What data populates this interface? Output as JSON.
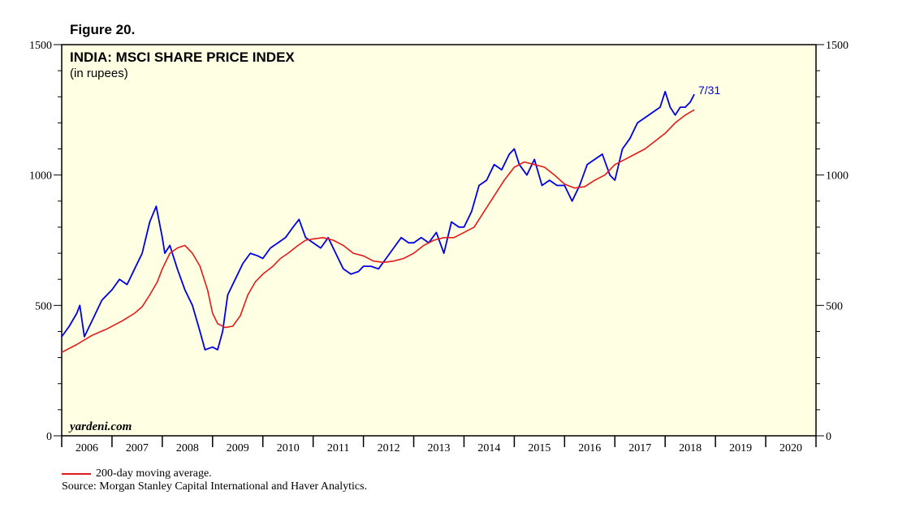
{
  "figure_label": "Figure 20.",
  "chart_data": {
    "type": "line",
    "title": "INDIA: MSCI SHARE PRICE INDEX",
    "subtitle": "(in rupees)",
    "watermark": "yardeni.com",
    "end_annotation": "7/31",
    "ylim": [
      0,
      1500
    ],
    "y_ticks": [
      0,
      500,
      1000,
      1500
    ],
    "xlim": [
      2006,
      2021
    ],
    "x_ticks": [
      "2006",
      "2007",
      "2008",
      "2009",
      "2010",
      "2011",
      "2012",
      "2013",
      "2014",
      "2015",
      "2016",
      "2017",
      "2018",
      "2019",
      "2020"
    ],
    "colors": {
      "index": "#0000e6",
      "moving_average": "#e41a1a",
      "plot_bg": "#ffffe3"
    },
    "series": [
      {
        "name": "MSCI Share Price Index",
        "x": [
          2006.0,
          2006.15,
          2006.3,
          2006.36,
          2006.45,
          2006.6,
          2006.8,
          2007.0,
          2007.15,
          2007.3,
          2007.45,
          2007.6,
          2007.75,
          2007.88,
          2008.0,
          2008.05,
          2008.15,
          2008.3,
          2008.45,
          2008.6,
          2008.75,
          2008.85,
          2009.0,
          2009.1,
          2009.2,
          2009.3,
          2009.45,
          2009.6,
          2009.75,
          2009.9,
          2010.0,
          2010.15,
          2010.3,
          2010.45,
          2010.6,
          2010.72,
          2010.85,
          2011.0,
          2011.15,
          2011.3,
          2011.45,
          2011.6,
          2011.75,
          2011.9,
          2012.0,
          2012.15,
          2012.3,
          2012.45,
          2012.6,
          2012.75,
          2012.9,
          2013.0,
          2013.15,
          2013.3,
          2013.45,
          2013.6,
          2013.75,
          2013.9,
          2014.0,
          2014.15,
          2014.3,
          2014.45,
          2014.6,
          2014.75,
          2014.9,
          2015.0,
          2015.1,
          2015.25,
          2015.4,
          2015.55,
          2015.7,
          2015.85,
          2016.0,
          2016.15,
          2016.3,
          2016.45,
          2016.6,
          2016.75,
          2016.9,
          2017.0,
          2017.15,
          2017.3,
          2017.45,
          2017.6,
          2017.75,
          2017.9,
          2018.0,
          2018.1,
          2018.2,
          2018.3,
          2018.4,
          2018.5,
          2018.58
        ],
        "values": [
          380,
          420,
          470,
          500,
          380,
          440,
          520,
          560,
          600,
          580,
          640,
          700,
          820,
          880,
          760,
          700,
          730,
          640,
          560,
          500,
          400,
          330,
          340,
          330,
          400,
          540,
          600,
          660,
          700,
          690,
          680,
          720,
          740,
          760,
          800,
          830,
          760,
          740,
          720,
          760,
          700,
          640,
          620,
          630,
          650,
          650,
          640,
          680,
          720,
          760,
          740,
          740,
          760,
          740,
          780,
          700,
          820,
          800,
          800,
          860,
          960,
          980,
          1040,
          1020,
          1080,
          1100,
          1040,
          1000,
          1060,
          960,
          980,
          960,
          960,
          900,
          960,
          1040,
          1060,
          1080,
          1000,
          980,
          1100,
          1140,
          1200,
          1220,
          1240,
          1260,
          1320,
          1260,
          1230,
          1260,
          1260,
          1280,
          1310
        ]
      },
      {
        "name": "200-day moving average.",
        "x": [
          2006.0,
          2006.3,
          2006.6,
          2006.9,
          2007.2,
          2007.45,
          2007.6,
          2007.75,
          2007.9,
          2008.0,
          2008.15,
          2008.3,
          2008.45,
          2008.6,
          2008.75,
          2008.9,
          2009.0,
          2009.1,
          2009.25,
          2009.4,
          2009.55,
          2009.7,
          2009.85,
          2010.0,
          2010.2,
          2010.35,
          2010.5,
          2010.7,
          2010.85,
          2011.0,
          2011.2,
          2011.4,
          2011.6,
          2011.8,
          2012.0,
          2012.2,
          2012.4,
          2012.6,
          2012.8,
          2013.0,
          2013.2,
          2013.4,
          2013.6,
          2013.8,
          2014.0,
          2014.2,
          2014.4,
          2014.6,
          2014.8,
          2015.0,
          2015.2,
          2015.4,
          2015.6,
          2015.8,
          2016.0,
          2016.2,
          2016.4,
          2016.6,
          2016.8,
          2017.0,
          2017.2,
          2017.4,
          2017.6,
          2017.8,
          2018.0,
          2018.2,
          2018.4,
          2018.58
        ],
        "values": [
          320,
          350,
          385,
          410,
          440,
          470,
          495,
          540,
          590,
          640,
          700,
          720,
          730,
          700,
          650,
          560,
          470,
          430,
          415,
          420,
          460,
          540,
          590,
          620,
          650,
          680,
          700,
          730,
          750,
          755,
          760,
          750,
          730,
          700,
          690,
          670,
          665,
          670,
          680,
          700,
          730,
          750,
          760,
          760,
          780,
          800,
          860,
          920,
          980,
          1030,
          1050,
          1040,
          1030,
          1000,
          965,
          950,
          955,
          980,
          1000,
          1040,
          1060,
          1080,
          1100,
          1130,
          1160,
          1200,
          1230,
          1250
        ]
      }
    ]
  },
  "legend": {
    "ma_label": "200-day moving average."
  },
  "source": "Source: Morgan Stanley Capital International and Haver Analytics."
}
